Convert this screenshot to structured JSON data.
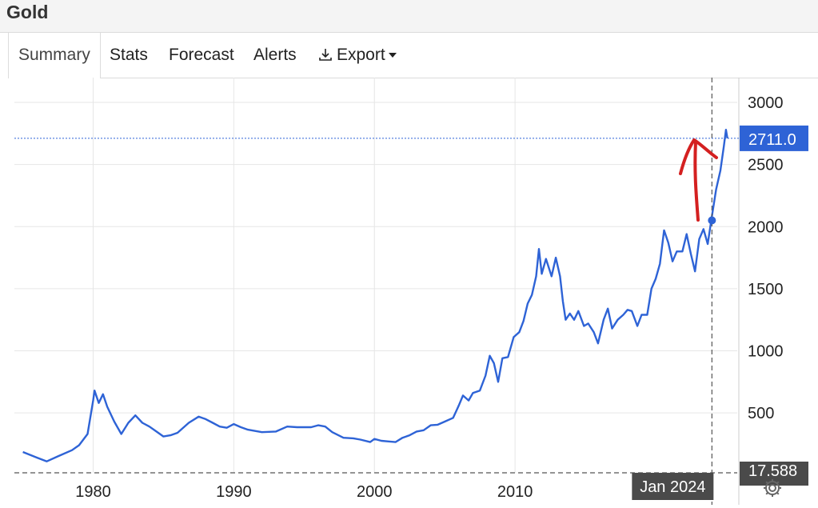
{
  "header": {
    "title": "Gold"
  },
  "tabs": [
    {
      "label": "Summary",
      "active": true
    },
    {
      "label": "Stats"
    },
    {
      "label": "Forecast"
    },
    {
      "label": "Alerts"
    },
    {
      "label": "Export",
      "icon": "download-icon",
      "dropdown": true
    }
  ],
  "chart_data": {
    "type": "line",
    "title": "",
    "xlabel": "",
    "ylabel": "",
    "xlim": [
      1974.4,
      2025.8
    ],
    "ylim": [
      17.588,
      3200
    ],
    "x_ticks": [
      "1980",
      "1990",
      "2000",
      "2010"
    ],
    "y_ticks": [
      500,
      1000,
      1500,
      2000,
      2500,
      3000
    ],
    "bottom_value_label": "17.588",
    "crosshair_date_label": "Jan 2024",
    "current_value_label": "2711.0",
    "grid": true,
    "series": [
      {
        "color": "#2e63d6",
        "points": [
          [
            1975.0,
            185
          ],
          [
            1976.0,
            140
          ],
          [
            1976.7,
            110
          ],
          [
            1977.5,
            150
          ],
          [
            1978.5,
            200
          ],
          [
            1979.0,
            240
          ],
          [
            1979.6,
            330
          ],
          [
            1980.0,
            600
          ],
          [
            1980.1,
            680
          ],
          [
            1980.4,
            580
          ],
          [
            1980.7,
            650
          ],
          [
            1981.0,
            550
          ],
          [
            1981.5,
            430
          ],
          [
            1982.0,
            330
          ],
          [
            1982.5,
            420
          ],
          [
            1983.0,
            480
          ],
          [
            1983.5,
            420
          ],
          [
            1984.0,
            390
          ],
          [
            1984.5,
            350
          ],
          [
            1985.0,
            310
          ],
          [
            1985.5,
            320
          ],
          [
            1986.0,
            340
          ],
          [
            1986.8,
            420
          ],
          [
            1987.5,
            470
          ],
          [
            1988.0,
            450
          ],
          [
            1988.5,
            420
          ],
          [
            1989.0,
            390
          ],
          [
            1989.5,
            380
          ],
          [
            1990.0,
            410
          ],
          [
            1990.5,
            385
          ],
          [
            1991.0,
            365
          ],
          [
            1992.0,
            345
          ],
          [
            1993.0,
            350
          ],
          [
            1993.8,
            390
          ],
          [
            1994.5,
            385
          ],
          [
            1995.5,
            385
          ],
          [
            1996.0,
            400
          ],
          [
            1996.5,
            390
          ],
          [
            1997.0,
            345
          ],
          [
            1997.8,
            300
          ],
          [
            1998.5,
            295
          ],
          [
            1999.0,
            285
          ],
          [
            1999.7,
            265
          ],
          [
            2000.0,
            290
          ],
          [
            2000.5,
            275
          ],
          [
            2001.0,
            270
          ],
          [
            2001.5,
            265
          ],
          [
            2002.0,
            300
          ],
          [
            2002.5,
            320
          ],
          [
            2003.0,
            350
          ],
          [
            2003.5,
            360
          ],
          [
            2004.0,
            400
          ],
          [
            2004.5,
            405
          ],
          [
            2005.0,
            430
          ],
          [
            2005.6,
            460
          ],
          [
            2006.0,
            560
          ],
          [
            2006.3,
            640
          ],
          [
            2006.7,
            600
          ],
          [
            2007.0,
            660
          ],
          [
            2007.5,
            680
          ],
          [
            2007.9,
            800
          ],
          [
            2008.2,
            960
          ],
          [
            2008.5,
            900
          ],
          [
            2008.8,
            750
          ],
          [
            2009.1,
            940
          ],
          [
            2009.5,
            950
          ],
          [
            2009.9,
            1110
          ],
          [
            2010.3,
            1150
          ],
          [
            2010.6,
            1240
          ],
          [
            2010.9,
            1380
          ],
          [
            2011.2,
            1450
          ],
          [
            2011.5,
            1600
          ],
          [
            2011.7,
            1820
          ],
          [
            2011.9,
            1620
          ],
          [
            2012.2,
            1740
          ],
          [
            2012.6,
            1600
          ],
          [
            2012.9,
            1750
          ],
          [
            2013.2,
            1600
          ],
          [
            2013.4,
            1400
          ],
          [
            2013.6,
            1250
          ],
          [
            2013.9,
            1300
          ],
          [
            2014.2,
            1250
          ],
          [
            2014.5,
            1320
          ],
          [
            2014.9,
            1200
          ],
          [
            2015.2,
            1220
          ],
          [
            2015.6,
            1150
          ],
          [
            2015.9,
            1060
          ],
          [
            2016.3,
            1250
          ],
          [
            2016.6,
            1340
          ],
          [
            2016.9,
            1180
          ],
          [
            2017.3,
            1250
          ],
          [
            2017.7,
            1290
          ],
          [
            2018.0,
            1330
          ],
          [
            2018.3,
            1320
          ],
          [
            2018.7,
            1200
          ],
          [
            2019.0,
            1290
          ],
          [
            2019.4,
            1290
          ],
          [
            2019.7,
            1500
          ],
          [
            2020.0,
            1580
          ],
          [
            2020.3,
            1700
          ],
          [
            2020.6,
            1970
          ],
          [
            2020.9,
            1870
          ],
          [
            2021.2,
            1720
          ],
          [
            2021.5,
            1800
          ],
          [
            2021.9,
            1800
          ],
          [
            2022.2,
            1940
          ],
          [
            2022.5,
            1780
          ],
          [
            2022.8,
            1640
          ],
          [
            2023.1,
            1900
          ],
          [
            2023.4,
            1980
          ],
          [
            2023.7,
            1860
          ],
          [
            2023.95,
            2050
          ],
          [
            2024.3,
            2300
          ],
          [
            2024.6,
            2450
          ],
          [
            2024.85,
            2650
          ],
          [
            2025.0,
            2780
          ],
          [
            2025.1,
            2711
          ]
        ]
      }
    ]
  }
}
